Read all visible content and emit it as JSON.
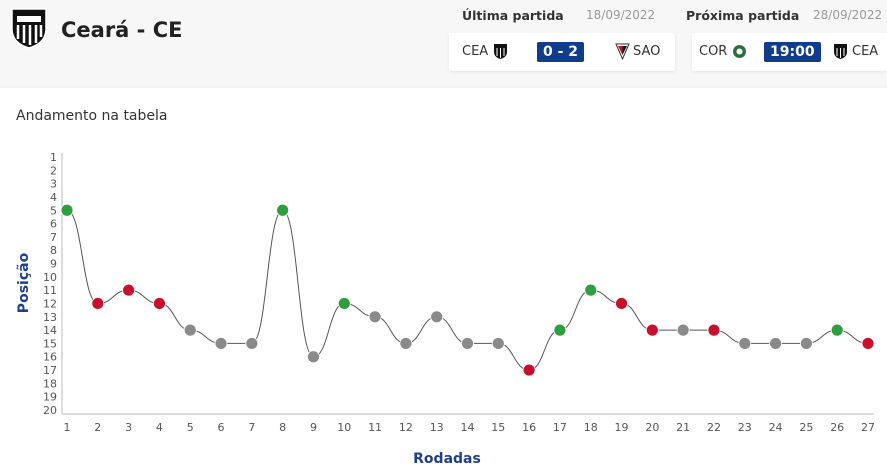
{
  "header": {
    "team_name": "Ceará - CE",
    "last_match": {
      "label": "Última partida",
      "date": "18/09/2022",
      "home": "CEA",
      "score": "0 - 2",
      "away": "SAO"
    },
    "next_match": {
      "label": "Próxima partida",
      "date": "28/09/2022",
      "home": "COR",
      "time": "19:00",
      "away": "CEA"
    }
  },
  "chart_data": {
    "type": "line",
    "title": "Andamento na tabela",
    "xlabel": "Rodadas",
    "ylabel": "Posição",
    "x": [
      1,
      2,
      3,
      4,
      5,
      6,
      7,
      8,
      9,
      10,
      11,
      12,
      13,
      14,
      15,
      16,
      17,
      18,
      19,
      20,
      21,
      22,
      23,
      24,
      25,
      26,
      27
    ],
    "y": [
      5,
      12,
      11,
      12,
      14,
      15,
      15,
      5,
      16,
      12,
      13,
      15,
      13,
      15,
      15,
      17,
      14,
      11,
      12,
      14,
      14,
      14,
      15,
      15,
      15,
      14,
      15
    ],
    "results": [
      "win",
      "loss",
      "loss",
      "loss",
      "draw",
      "draw",
      "draw",
      "win",
      "draw",
      "win",
      "draw",
      "draw",
      "draw",
      "draw",
      "draw",
      "loss",
      "win",
      "win",
      "loss",
      "loss",
      "draw",
      "loss",
      "draw",
      "draw",
      "draw",
      "win",
      "loss"
    ],
    "ylim": [
      1,
      20
    ],
    "y_inverted": true,
    "yticks": [
      1,
      2,
      3,
      4,
      5,
      6,
      7,
      8,
      9,
      10,
      11,
      12,
      13,
      14,
      15,
      16,
      17,
      18,
      19,
      20
    ],
    "colors": {
      "win": "#2e9e3e",
      "loss": "#c8102e",
      "draw": "#8a8a8a",
      "line": "#555555",
      "axis_label": "#1f3f8f"
    },
    "grid": false
  }
}
